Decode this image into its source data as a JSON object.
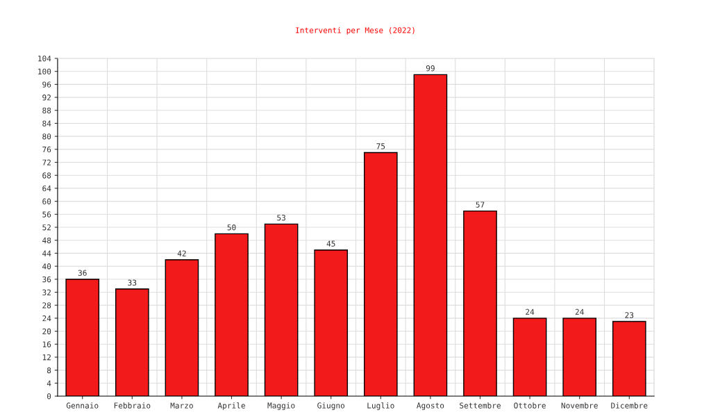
{
  "chart_data": {
    "type": "bar",
    "title": "Interventi per Mese (2022)",
    "categories": [
      "Gennaio",
      "Febbraio",
      "Marzo",
      "Aprile",
      "Maggio",
      "Giugno",
      "Luglio",
      "Agosto",
      "Settembre",
      "Ottobre",
      "Novembre",
      "Dicembre"
    ],
    "values": [
      36,
      33,
      42,
      50,
      53,
      45,
      75,
      99,
      57,
      24,
      24,
      23
    ],
    "color": "#f21a1a",
    "ylim": [
      0,
      104
    ],
    "yticks": [
      0,
      4,
      8,
      12,
      16,
      20,
      24,
      28,
      32,
      36,
      40,
      44,
      48,
      52,
      56,
      60,
      64,
      68,
      72,
      76,
      80,
      84,
      88,
      92,
      96,
      100,
      104
    ],
    "grid": true,
    "data_labels": true
  }
}
